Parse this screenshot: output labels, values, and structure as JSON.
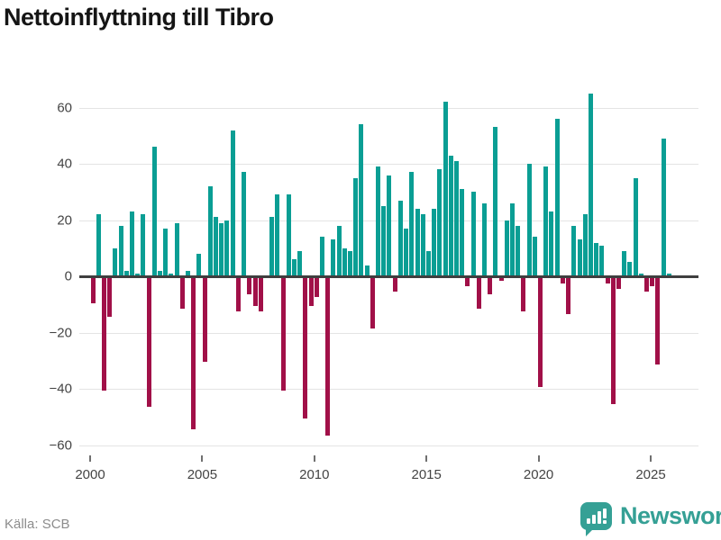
{
  "title": "Nettoinflyttning till Tibro",
  "source": "Källa: SCB",
  "brand": {
    "name": "Newsworthy"
  },
  "colors": {
    "positive": "#0a9e94",
    "negative": "#a11048",
    "zero_line": "#3f3f3f",
    "gridline": "#e4e4e4",
    "axis_text": "#444444",
    "brand_teal": "#35a095"
  },
  "chart_data": {
    "type": "bar",
    "title": "Nettoinflyttning till Tibro",
    "frequency": "quarterly",
    "start_year": 2000,
    "values": [
      -9,
      22,
      -40,
      -14,
      10,
      18,
      2,
      23,
      1,
      22,
      -46,
      46,
      2,
      17,
      1,
      19,
      -11,
      2,
      -54,
      8,
      -30,
      32,
      21,
      19,
      20,
      52,
      -12,
      37,
      -6,
      -10,
      -12,
      0,
      21,
      29,
      -40,
      29,
      6,
      9,
      -50,
      -10,
      -7,
      14,
      -56,
      13,
      18,
      10,
      9,
      35,
      54,
      4,
      -18,
      39,
      25,
      36,
      -5,
      27,
      17,
      37,
      24,
      22,
      9,
      24,
      38,
      62,
      43,
      41,
      31,
      -3,
      30,
      -11,
      26,
      -6,
      53,
      -1,
      20,
      26,
      18,
      -12,
      40,
      14,
      -39,
      39,
      23,
      56,
      -2,
      -13,
      18,
      13,
      22,
      65,
      12,
      11,
      -2,
      -45,
      -4,
      9,
      5,
      35,
      1,
      -5,
      -3,
      -31,
      49,
      1
    ],
    "y_ticks": [
      {
        "value": 60,
        "label": "60"
      },
      {
        "value": 40,
        "label": "40"
      },
      {
        "value": 20,
        "label": "20"
      },
      {
        "value": 0,
        "label": "0"
      },
      {
        "value": -20,
        "label": "−20"
      },
      {
        "value": -40,
        "label": "−40"
      },
      {
        "value": -60,
        "label": "−60"
      }
    ],
    "x_ticks": [
      {
        "year": 2000,
        "label": "2000"
      },
      {
        "year": 2005,
        "label": "2005"
      },
      {
        "year": 2010,
        "label": "2010"
      },
      {
        "year": 2015,
        "label": "2015"
      },
      {
        "year": 2020,
        "label": "2020"
      },
      {
        "year": 2025,
        "label": "2025"
      }
    ],
    "ylim": [
      -60,
      66
    ],
    "grid": true,
    "legend": false
  }
}
